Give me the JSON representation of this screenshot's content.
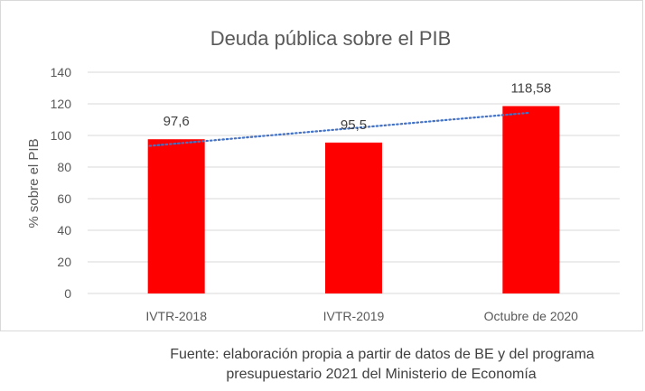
{
  "chart_data": {
    "type": "bar",
    "title": "Deuda pública sobre el PIB",
    "xlabel": "",
    "ylabel": "% sobre el PIB",
    "categories": [
      "IVTR-2018",
      "IVTR-2019",
      "Octubre de 2020"
    ],
    "values": [
      97.6,
      95.5,
      118.58
    ],
    "data_labels": [
      "97,6",
      "95,5",
      "118,58"
    ],
    "ylim": [
      0,
      140
    ],
    "yticks": [
      0,
      20,
      40,
      60,
      80,
      100,
      120,
      140
    ],
    "grid": true,
    "legend": "none",
    "trendline": {
      "type": "linear",
      "style": "dotted"
    },
    "colors": {
      "bar": "#ff0000",
      "trendline": "#4472c4",
      "grid": "#d9d9d9",
      "text": "#595959"
    }
  },
  "caption": {
    "line1": "Fuente: elaboración propia a partir de datos de BE y del programa",
    "line2": "presupuestario 2021 del Ministerio de Economía"
  }
}
